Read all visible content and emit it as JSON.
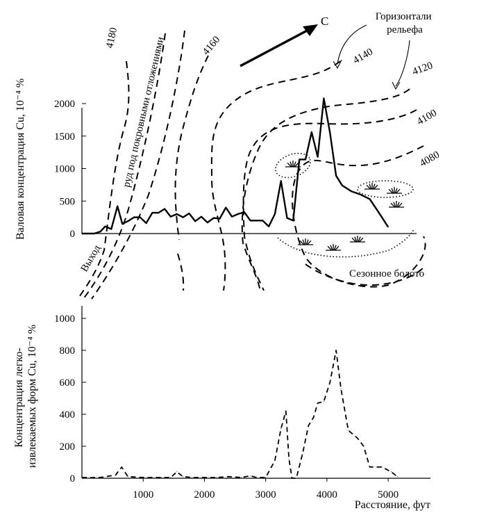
{
  "chart_data": [
    {
      "type": "line",
      "ylabel": "Валовая концентрация Cu, 10⁻⁴ %",
      "ylim": [
        0,
        2200
      ],
      "yticks": [
        0,
        500,
        1000,
        1500,
        2000
      ],
      "xlim": [
        0,
        5600
      ],
      "series": [
        {
          "x": [
            0,
            100,
            200,
            300,
            380,
            480,
            580,
            660,
            750,
            850,
            950,
            1050,
            1150,
            1250,
            1350,
            1450,
            1550,
            1650,
            1750,
            1850,
            1950,
            2050,
            2150,
            2250,
            2350,
            2450,
            2550,
            2650,
            2750,
            2850,
            2950,
            3050,
            3150,
            3250,
            3350,
            3450,
            3550,
            3650,
            3750,
            3850,
            3950,
            4050,
            4150,
            4250,
            4400,
            4550,
            4700,
            4850,
            5000
          ],
          "values": [
            0,
            0,
            0,
            30,
            110,
            70,
            420,
            150,
            190,
            250,
            250,
            160,
            320,
            320,
            380,
            260,
            300,
            250,
            310,
            190,
            260,
            170,
            240,
            230,
            400,
            260,
            300,
            330,
            200,
            200,
            200,
            110,
            300,
            810,
            240,
            200,
            1140,
            1140,
            1560,
            1180,
            2080,
            1550,
            890,
            740,
            650,
            600,
            530,
            320,
            100
          ]
        }
      ],
      "annotations": {
        "contours": [
          "4180",
          "4160",
          "4140",
          "4120",
          "4100",
          "4080"
        ],
        "contour_legend": "Горизонтали\nрельефа",
        "north": "С",
        "outcrop": "Выход",
        "ore": "руд под покровными отложениями",
        "swamp": "Сезонное болото"
      }
    },
    {
      "type": "line",
      "line_style": "dashed",
      "ylabel": "Концентрация легко-\nизвлекаемых форм Cu, 10⁻⁴ %",
      "xlabel": "Расстояние, фут",
      "ylim": [
        0,
        1050
      ],
      "yticks": [
        0,
        200,
        400,
        600,
        800,
        1000
      ],
      "xlim": [
        0,
        5600
      ],
      "xticks": [
        1000,
        2000,
        3000,
        4000,
        5000
      ],
      "series": [
        {
          "x": [
            0,
            300,
            550,
            650,
            750,
            1000,
            1300,
            1450,
            1550,
            1650,
            1800,
            2000,
            2200,
            2400,
            2600,
            2750,
            2850,
            3000,
            3150,
            3250,
            3330,
            3380,
            3430,
            3500,
            3600,
            3700,
            3780,
            3850,
            3950,
            4050,
            4150,
            4230,
            4350,
            4500,
            4600,
            4700,
            4800,
            4900,
            5050,
            5150
          ],
          "values": [
            5,
            5,
            20,
            70,
            10,
            5,
            5,
            5,
            40,
            10,
            5,
            5,
            5,
            10,
            5,
            15,
            5,
            5,
            110,
            310,
            420,
            120,
            0,
            0,
            150,
            330,
            380,
            470,
            480,
            600,
            800,
            560,
            300,
            250,
            200,
            70,
            70,
            70,
            40,
            10
          ]
        }
      ]
    }
  ]
}
